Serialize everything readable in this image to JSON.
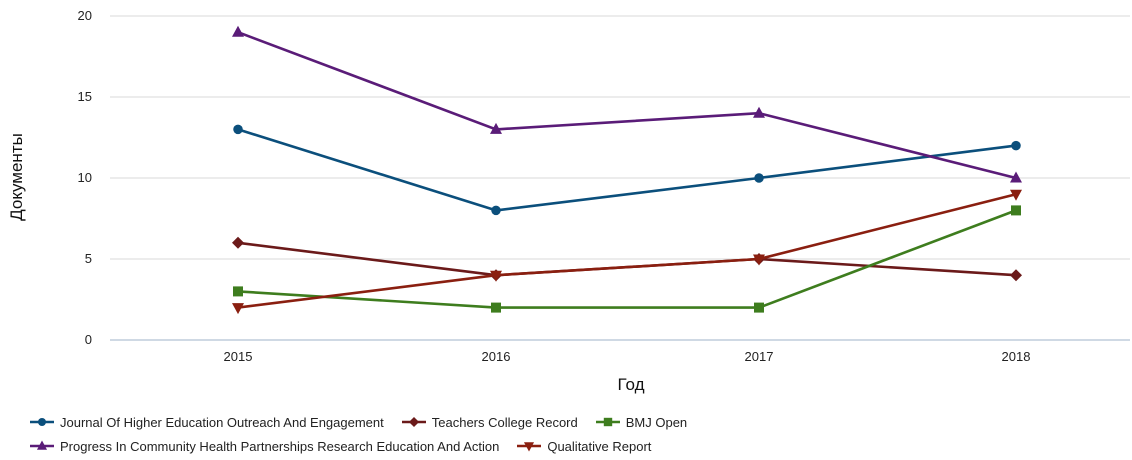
{
  "chart_data": {
    "type": "line",
    "title": "",
    "xlabel": "Год",
    "ylabel": "Документы",
    "x": [
      "2015",
      "2016",
      "2017",
      "2018"
    ],
    "ylim": [
      0,
      20
    ],
    "yticks": [
      0,
      5,
      10,
      15,
      20
    ],
    "grid": "horizontal",
    "legend_position": "bottom",
    "series": [
      {
        "name": "Journal Of Higher Education Outreach And Engagement",
        "values": [
          13,
          8,
          10,
          12
        ],
        "color": "#0b4f7c",
        "marker": "circle"
      },
      {
        "name": "Teachers College Record",
        "values": [
          6,
          4,
          5,
          4
        ],
        "color": "#6b1a1a",
        "marker": "diamond"
      },
      {
        "name": "BMJ Open",
        "values": [
          3,
          2,
          2,
          8
        ],
        "color": "#3e7d1e",
        "marker": "square"
      },
      {
        "name": "Progress In Community Health Partnerships Research Education And Action",
        "values": [
          19,
          13,
          14,
          10
        ],
        "color": "#5a1c78",
        "marker": "triangle-up"
      },
      {
        "name": "Qualitative Report",
        "values": [
          2,
          4,
          5,
          9
        ],
        "color": "#8a1f10",
        "marker": "triangle-down"
      }
    ]
  }
}
